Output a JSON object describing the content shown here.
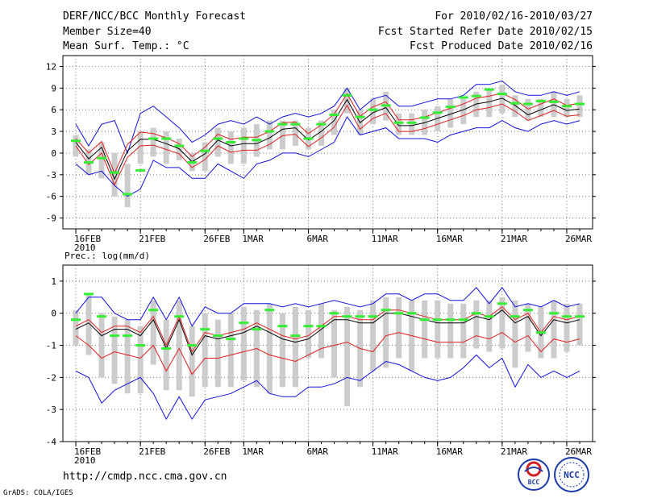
{
  "header": {
    "title": "DERF/NCC/BCC Monthly Forecast",
    "member_size": "Member Size=40",
    "variable": "Mean Surf. Temp.: °C",
    "forecast_period": "For 2010/02/16-2010/03/27",
    "started_refer": "Fcst Started Refer Date 2010/02/15",
    "produced": "Fcst Produced Date 2010/02/16"
  },
  "footer": {
    "url": "http://cmdp.ncc.cma.gov.cn",
    "credit": "GrADS: COLA/IGES",
    "logo_bcc": "BCC",
    "logo_ncc": "NCC"
  },
  "x_axis": {
    "year": "2010",
    "ticks": [
      {
        "day": 0,
        "label": "16FEB"
      },
      {
        "day": 5,
        "label": "21FEB"
      },
      {
        "day": 10,
        "label": "26FEB"
      },
      {
        "day": 13,
        "label": "1MAR"
      },
      {
        "day": 18,
        "label": "6MAR"
      },
      {
        "day": 23,
        "label": "11MAR"
      },
      {
        "day": 28,
        "label": "16MAR"
      },
      {
        "day": 33,
        "label": "21MAR"
      },
      {
        "day": 38,
        "label": "26MAR"
      }
    ],
    "range": [
      -1,
      40
    ]
  },
  "colors": {
    "ensemble_mean": "#000000",
    "spread_line": "#e02020",
    "extreme_line": "#1010e0",
    "member_bar": "#cccccc",
    "marker": "#33ee33",
    "grid": "#777777"
  },
  "chart_data": [
    {
      "type": "line",
      "title": "Mean Surf. Temp.: °C",
      "ylim": [
        -10.5,
        13.5
      ],
      "yticks": [
        12,
        9,
        6,
        3,
        0,
        -3,
        -6,
        -9
      ],
      "ytick_labels": [
        "12",
        "9",
        "6",
        "3",
        "0",
        "-3",
        "-6",
        "-9"
      ],
      "x": [
        0,
        1,
        2,
        3,
        4,
        5,
        6,
        7,
        8,
        9,
        10,
        11,
        12,
        13,
        14,
        15,
        16,
        17,
        18,
        19,
        20,
        21,
        22,
        23,
        24,
        25,
        26,
        27,
        28,
        29,
        30,
        31,
        32,
        33,
        34,
        35,
        36,
        37,
        38,
        39
      ],
      "series": [
        {
          "name": "Ensemble Mean",
          "values": [
            1.5,
            -0.8,
            0.8,
            -3.6,
            0.3,
            1.9,
            1.9,
            1.3,
            0.6,
            -1.2,
            -0.1,
            1.8,
            1.0,
            1.3,
            1.3,
            2.1,
            3.3,
            3.5,
            1.8,
            3.0,
            4.5,
            7.4,
            4.2,
            5.6,
            6.3,
            3.8,
            3.8,
            4.2,
            4.8,
            5.4,
            6.0,
            6.8,
            7.1,
            7.6,
            6.6,
            5.3,
            6.0,
            6.7,
            5.9,
            6.1
          ]
        },
        {
          "name": "Upper Spread",
          "values": [
            2.0,
            0.0,
            1.6,
            -2.8,
            1.2,
            2.9,
            2.7,
            2.1,
            1.3,
            -0.5,
            0.8,
            2.6,
            1.9,
            2.2,
            2.2,
            3.0,
            4.2,
            4.3,
            2.7,
            3.9,
            5.4,
            8.2,
            5.1,
            6.4,
            7.1,
            4.6,
            4.6,
            5.0,
            5.6,
            6.2,
            6.8,
            7.6,
            7.9,
            8.3,
            7.4,
            6.1,
            6.8,
            7.5,
            6.6,
            6.9
          ]
        },
        {
          "name": "Lower Spread",
          "values": [
            1.0,
            -1.6,
            0.0,
            -4.4,
            -0.6,
            1.0,
            1.1,
            0.5,
            -0.1,
            -2.0,
            -0.9,
            1.0,
            0.1,
            0.4,
            0.4,
            1.2,
            2.4,
            2.6,
            0.9,
            2.1,
            3.6,
            6.6,
            3.3,
            4.8,
            5.5,
            3.0,
            3.0,
            3.4,
            4.0,
            4.6,
            5.2,
            6.0,
            6.3,
            6.8,
            5.8,
            4.5,
            5.2,
            5.9,
            5.1,
            5.3
          ]
        },
        {
          "name": "Maximum",
          "values": [
            4.0,
            1.0,
            4.0,
            4.5,
            0.0,
            5.5,
            6.5,
            5.0,
            3.5,
            1.5,
            2.5,
            4.0,
            4.5,
            4.0,
            5.0,
            4.0,
            5.0,
            5.5,
            5.0,
            5.5,
            6.5,
            9.0,
            6.0,
            7.5,
            8.0,
            6.5,
            6.5,
            7.0,
            7.5,
            7.5,
            8.0,
            9.5,
            9.5,
            10.0,
            8.5,
            8.0,
            8.0,
            8.5,
            8.0,
            8.5
          ]
        },
        {
          "name": "Minimum",
          "values": [
            -1.5,
            -3.0,
            -2.5,
            -4.5,
            -6.0,
            -5.0,
            -1.0,
            -2.0,
            -2.0,
            -3.5,
            -3.5,
            -1.5,
            -2.5,
            -3.5,
            -1.5,
            -1.0,
            0.0,
            0.0,
            -0.5,
            0.5,
            1.5,
            5.0,
            2.5,
            3.0,
            3.5,
            2.0,
            2.0,
            2.0,
            1.5,
            2.5,
            3.0,
            3.5,
            3.5,
            4.5,
            3.5,
            3.0,
            4.0,
            4.5,
            4.0,
            4.5
          ]
        },
        {
          "name": "Members High",
          "values": [
            2.5,
            0.5,
            1.5,
            0.0,
            -1.5,
            3.0,
            3.5,
            3.0,
            2.0,
            0.0,
            1.5,
            3.5,
            3.0,
            3.5,
            4.0,
            4.5,
            4.5,
            4.5,
            3.5,
            4.5,
            6.0,
            9.0,
            6.0,
            7.5,
            8.5,
            5.5,
            5.5,
            6.0,
            6.5,
            7.5,
            7.5,
            8.5,
            9.0,
            9.5,
            8.0,
            7.5,
            7.5,
            8.5,
            7.5,
            8.0
          ]
        },
        {
          "name": "Members Low",
          "values": [
            -0.5,
            -3.0,
            -3.5,
            -6.0,
            -7.5,
            -1.5,
            -0.5,
            -1.5,
            -1.0,
            -2.5,
            -2.5,
            -0.5,
            -1.5,
            -1.5,
            -0.5,
            0.5,
            0.5,
            1.0,
            0.5,
            1.0,
            2.5,
            5.5,
            2.5,
            4.0,
            4.5,
            2.5,
            2.5,
            2.5,
            3.0,
            3.5,
            4.0,
            5.0,
            5.0,
            5.5,
            5.0,
            4.5,
            5.0,
            5.0,
            5.0,
            5.0
          ]
        },
        {
          "name": "Marker",
          "values": [
            1.7,
            -1.3,
            -0.7,
            -2.7,
            -5.7,
            -2.4,
            2.0,
            2.0,
            1.0,
            -1.3,
            0.3,
            2.0,
            1.5,
            2.0,
            1.8,
            3.0,
            4.0,
            4.0,
            2.0,
            4.0,
            5.3,
            8.0,
            5.0,
            6.0,
            6.6,
            4.2,
            4.2,
            4.9,
            5.6,
            6.4,
            7.7,
            7.9,
            8.8,
            8.2,
            6.9,
            6.8,
            7.2,
            7.1,
            6.5,
            6.8
          ]
        }
      ]
    },
    {
      "type": "line",
      "title": "Prec.: log(mm/d)",
      "ylim": [
        -4,
        1.5
      ],
      "yticks": [
        1,
        0,
        -1,
        -2,
        -3,
        -4
      ],
      "ytick_labels": [
        "1",
        "0",
        "-1",
        "-2",
        "-3",
        "-4"
      ],
      "x": [
        0,
        1,
        2,
        3,
        4,
        5,
        6,
        7,
        8,
        9,
        10,
        11,
        12,
        13,
        14,
        15,
        16,
        17,
        18,
        19,
        20,
        21,
        22,
        23,
        24,
        25,
        26,
        27,
        28,
        29,
        30,
        31,
        32,
        33,
        34,
        35,
        36,
        37,
        38,
        39
      ],
      "series": [
        {
          "name": "Ensemble Mean",
          "values": [
            -0.5,
            -0.3,
            -0.7,
            -0.5,
            -0.5,
            -0.7,
            -0.2,
            -1.1,
            -0.2,
            -1.3,
            -0.7,
            -0.8,
            -0.7,
            -0.6,
            -0.4,
            -0.6,
            -0.8,
            -0.9,
            -0.8,
            -0.5,
            -0.2,
            -0.2,
            -0.3,
            -0.3,
            0.0,
            0.0,
            -0.1,
            -0.2,
            -0.3,
            -0.3,
            -0.3,
            -0.1,
            -0.2,
            0.1,
            -0.3,
            -0.1,
            -0.7,
            -0.2,
            -0.3,
            -0.2
          ]
        },
        {
          "name": "Upper Spread",
          "values": [
            -0.4,
            -0.2,
            -0.6,
            -0.4,
            -0.4,
            -0.6,
            -0.1,
            -1.0,
            -0.1,
            -1.2,
            -0.6,
            -0.7,
            -0.6,
            -0.5,
            -0.3,
            -0.5,
            -0.7,
            -0.8,
            -0.7,
            -0.4,
            -0.1,
            -0.1,
            -0.2,
            -0.2,
            0.1,
            0.1,
            0.0,
            -0.1,
            -0.2,
            -0.2,
            -0.2,
            0.0,
            -0.1,
            0.2,
            -0.2,
            0.0,
            -0.6,
            -0.1,
            -0.2,
            -0.1
          ]
        },
        {
          "name": "Lower Spread",
          "values": [
            -0.7,
            -1.0,
            -1.4,
            -1.2,
            -1.3,
            -1.4,
            -1.0,
            -1.8,
            -1.1,
            -1.9,
            -1.4,
            -1.4,
            -1.3,
            -1.2,
            -1.1,
            -1.3,
            -1.4,
            -1.5,
            -1.3,
            -1.1,
            -1.0,
            -0.9,
            -1.1,
            -1.2,
            -0.7,
            -0.6,
            -0.7,
            -0.8,
            -0.9,
            -0.9,
            -0.9,
            -0.7,
            -0.8,
            -0.6,
            -0.9,
            -0.7,
            -1.2,
            -0.8,
            -0.9,
            -0.8
          ]
        },
        {
          "name": "Maximum",
          "values": [
            0.0,
            0.5,
            0.5,
            0.0,
            -0.2,
            -0.2,
            0.5,
            -0.2,
            0.5,
            -0.4,
            0.2,
            0.0,
            0.0,
            0.3,
            0.3,
            0.3,
            0.2,
            0.3,
            0.2,
            0.3,
            0.4,
            0.3,
            0.2,
            0.3,
            0.6,
            0.6,
            0.4,
            0.6,
            0.6,
            0.4,
            0.4,
            0.8,
            0.3,
            0.8,
            0.2,
            0.3,
            0.2,
            0.4,
            0.2,
            0.3
          ]
        },
        {
          "name": "Minimum",
          "values": [
            -1.8,
            -2.0,
            -2.8,
            -2.4,
            -2.2,
            -2.0,
            -2.5,
            -3.3,
            -2.6,
            -3.3,
            -2.7,
            -2.6,
            -2.5,
            -2.3,
            -2.1,
            -2.5,
            -2.6,
            -2.6,
            -2.3,
            -2.3,
            -2.2,
            -2.0,
            -2.1,
            -1.8,
            -1.5,
            -1.6,
            -1.8,
            -2.0,
            -2.1,
            -2.0,
            -1.7,
            -1.3,
            -1.7,
            -1.4,
            -2.3,
            -1.6,
            -2.0,
            -1.8,
            -2.0,
            -1.8
          ]
        },
        {
          "name": "Members High",
          "values": [
            0.1,
            0.6,
            0.0,
            -0.1,
            -0.2,
            -0.4,
            0.4,
            -0.2,
            0.4,
            -0.4,
            0.0,
            -0.2,
            0.0,
            0.2,
            0.1,
            0.3,
            0.0,
            0.2,
            0.1,
            0.3,
            0.1,
            0.2,
            0.1,
            0.4,
            0.5,
            0.5,
            0.4,
            0.4,
            0.4,
            0.3,
            0.3,
            0.4,
            0.4,
            0.5,
            0.4,
            0.3,
            0.2,
            0.4,
            0.3,
            0.3
          ]
        },
        {
          "name": "Members Low",
          "values": [
            -1.0,
            -1.3,
            -2.0,
            -2.2,
            -2.5,
            -2.5,
            -1.6,
            -2.4,
            -2.4,
            -2.6,
            -2.3,
            -2.3,
            -2.3,
            -2.1,
            -2.3,
            -2.5,
            -2.3,
            -2.3,
            -1.4,
            -1.4,
            -2.0,
            -2.9,
            -2.3,
            -1.8,
            -1.7,
            -1.4,
            -1.8,
            -1.4,
            -1.4,
            -1.4,
            -1.4,
            -1.1,
            -1.2,
            -1.1,
            -1.7,
            -1.2,
            -1.4,
            -1.4,
            -1.2,
            -1.0
          ]
        },
        {
          "name": "Marker",
          "values": [
            -0.2,
            0.6,
            -0.1,
            -0.7,
            -0.7,
            -1.0,
            0.1,
            -1.1,
            -0.1,
            -1.0,
            -0.5,
            -0.7,
            -0.8,
            -0.3,
            -0.5,
            0.1,
            -0.4,
            -0.7,
            -0.4,
            -0.4,
            0.0,
            -0.1,
            -0.1,
            -0.1,
            0.1,
            0.0,
            0.0,
            -0.2,
            -0.2,
            -0.2,
            -0.2,
            0.0,
            -0.1,
            0.3,
            -0.1,
            0.1,
            -0.6,
            0.0,
            -0.1,
            -0.1
          ]
        }
      ]
    }
  ]
}
